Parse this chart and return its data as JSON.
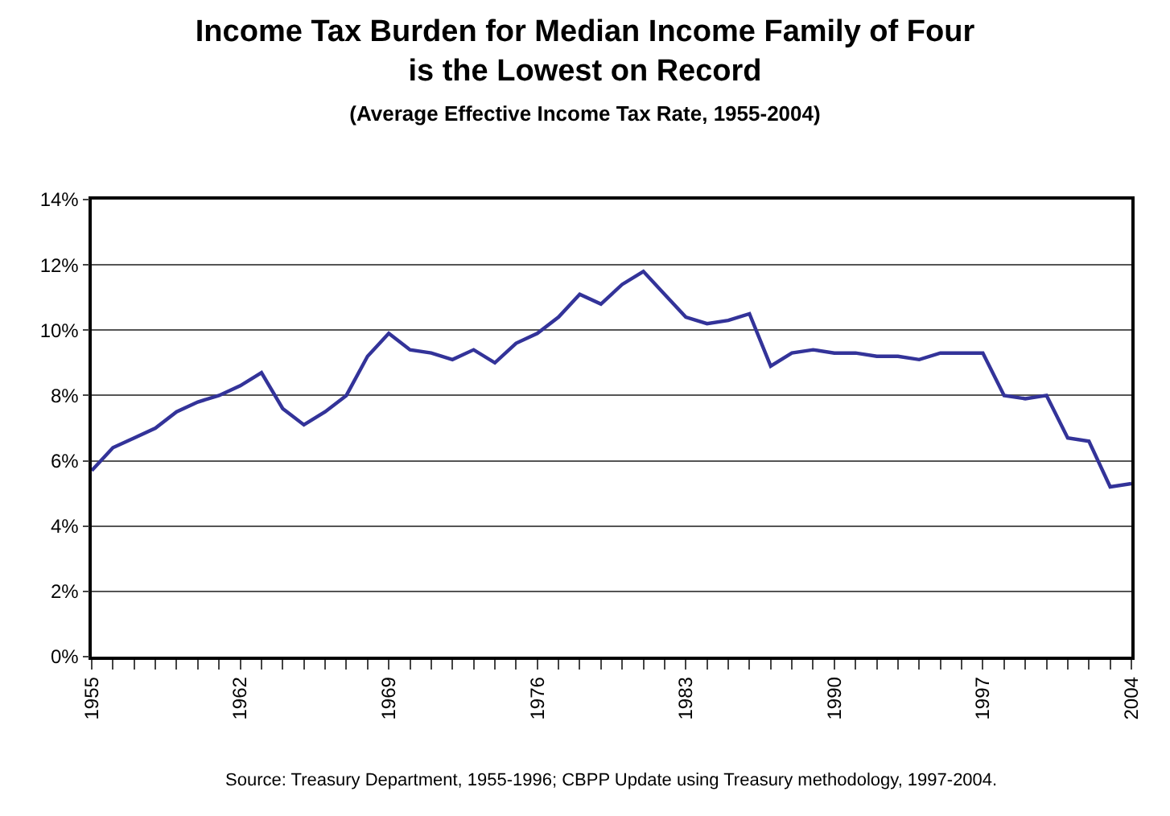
{
  "chart_data": {
    "type": "line",
    "title": "Income Tax Burden for Median Income Family of Four is the Lowest on Record",
    "subtitle": "(Average Effective Income Tax Rate, 1955-2004)",
    "x": [
      1955,
      1956,
      1957,
      1958,
      1959,
      1960,
      1961,
      1962,
      1963,
      1964,
      1965,
      1966,
      1967,
      1968,
      1969,
      1970,
      1971,
      1972,
      1973,
      1974,
      1975,
      1976,
      1977,
      1978,
      1979,
      1980,
      1981,
      1982,
      1983,
      1984,
      1985,
      1986,
      1987,
      1988,
      1989,
      1990,
      1991,
      1992,
      1993,
      1994,
      1995,
      1996,
      1997,
      1998,
      1999,
      2000,
      2001,
      2002,
      2003,
      2004
    ],
    "series": [
      {
        "color": "#333399",
        "values": [
          5.7,
          6.4,
          6.7,
          7.0,
          7.5,
          7.8,
          8.0,
          8.3,
          8.7,
          7.6,
          7.1,
          7.5,
          8.0,
          9.2,
          9.9,
          9.4,
          9.3,
          9.1,
          9.4,
          9.0,
          9.6,
          9.9,
          10.4,
          11.1,
          10.8,
          11.4,
          11.8,
          11.1,
          10.4,
          10.2,
          10.3,
          10.5,
          8.9,
          9.3,
          9.4,
          9.3,
          9.3,
          9.2,
          9.2,
          9.1,
          9.3,
          9.3,
          9.3,
          8.0,
          7.9,
          8.0,
          6.7,
          6.6,
          5.2,
          5.3
        ]
      }
    ],
    "xlim": [
      1955,
      2004
    ],
    "xticks": [
      1955,
      1962,
      1969,
      1976,
      1983,
      1990,
      1997,
      2004
    ],
    "ylim": [
      0,
      14
    ],
    "yticks": [
      {
        "value": 0,
        "label": "0%"
      },
      {
        "value": 2,
        "label": "2%"
      },
      {
        "value": 4,
        "label": "4%"
      },
      {
        "value": 6,
        "label": "6%"
      },
      {
        "value": 8,
        "label": "8%"
      },
      {
        "value": 10,
        "label": "10%"
      },
      {
        "value": 12,
        "label": "12%"
      },
      {
        "value": 14,
        "label": "14%"
      }
    ],
    "grid": "y",
    "marker": "none",
    "line_style": "solid",
    "annotations": [
      "Source: Treasury Department, 1955-1996; CBPP Update using Treasury methodology, 1997-2004."
    ]
  }
}
